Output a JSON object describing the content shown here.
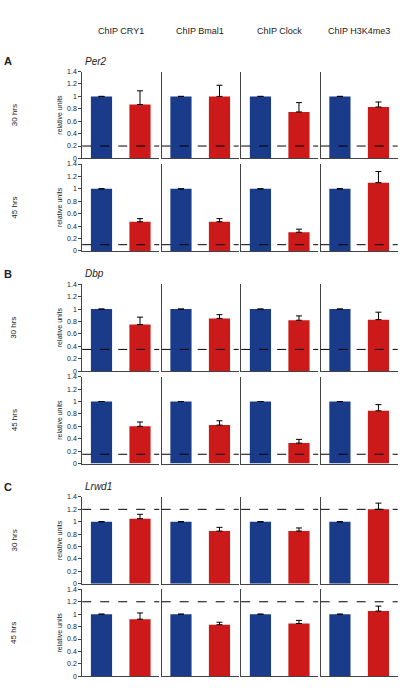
{
  "chart_data": [
    {
      "type": "bar",
      "categories": [
        null,
        null
      ],
      "values": [
        1.0,
        0.87
      ],
      "colors": [
        "#1a3a8a",
        "#cc1a1a"
      ],
      "errors": [
        0.0,
        0.22
      ],
      "reference_line": 0.2,
      "ylim": [
        0,
        1.4
      ],
      "yticks": [
        0,
        0.2,
        0.4,
        0.6,
        0.8,
        1,
        1.2,
        1.4
      ],
      "ylabel": "relative units",
      "tick_labels": "y",
      "grid": false,
      "title": "ChIP CRY1",
      "annotations": [
        "A",
        "Per2",
        "30 hrs"
      ]
    },
    {
      "type": "bar",
      "categories": [
        null,
        null
      ],
      "values": [
        1.0,
        1.0
      ],
      "colors": [
        "#1a3a8a",
        "#cc1a1a"
      ],
      "errors": [
        0.0,
        0.18
      ],
      "reference_line": 0.2,
      "ylim": [
        0,
        1.4
      ],
      "tick_labels": false,
      "grid": false,
      "title": "ChIP Bmal1"
    },
    {
      "type": "bar",
      "categories": [
        null,
        null
      ],
      "values": [
        1.0,
        0.75
      ],
      "colors": [
        "#1a3a8a",
        "#cc1a1a"
      ],
      "errors": [
        0.0,
        0.15
      ],
      "reference_line": 0.2,
      "ylim": [
        0,
        1.4
      ],
      "tick_labels": false,
      "grid": false,
      "title": "ChIP Clock"
    },
    {
      "type": "bar",
      "categories": [
        null,
        null
      ],
      "values": [
        1.0,
        0.83
      ],
      "colors": [
        "#1a3a8a",
        "#cc1a1a"
      ],
      "errors": [
        0.0,
        0.08
      ],
      "reference_line": 0.2,
      "ylim": [
        0,
        1.4
      ],
      "tick_labels": false,
      "grid": false,
      "title": "ChIP H3K4me3"
    },
    {
      "type": "bar",
      "categories": [
        null,
        null
      ],
      "values": [
        1.0,
        0.47
      ],
      "colors": [
        "#1a3a8a",
        "#cc1a1a"
      ],
      "errors": [
        0.0,
        0.05
      ],
      "reference_line": 0.1,
      "ylim": [
        0,
        1.4
      ],
      "yticks": [
        0,
        0.2,
        0.4,
        0.6,
        0.8,
        1,
        1.2,
        1.4
      ],
      "ylabel": "relative units",
      "tick_labels": "y",
      "grid": false,
      "annotations": [
        "45 hrs"
      ]
    },
    {
      "type": "bar",
      "categories": [
        null,
        null
      ],
      "values": [
        1.0,
        0.47
      ],
      "colors": [
        "#1a3a8a",
        "#cc1a1a"
      ],
      "errors": [
        0.0,
        0.05
      ],
      "reference_line": 0.1,
      "ylim": [
        0,
        1.4
      ],
      "tick_labels": false,
      "grid": false
    },
    {
      "type": "bar",
      "categories": [
        null,
        null
      ],
      "values": [
        1.0,
        0.3
      ],
      "colors": [
        "#1a3a8a",
        "#cc1a1a"
      ],
      "errors": [
        0.0,
        0.05
      ],
      "reference_line": 0.1,
      "ylim": [
        0,
        1.4
      ],
      "tick_labels": false,
      "grid": false
    },
    {
      "type": "bar",
      "categories": [
        null,
        null
      ],
      "values": [
        1.0,
        1.1
      ],
      "colors": [
        "#1a3a8a",
        "#cc1a1a"
      ],
      "errors": [
        0.0,
        0.18
      ],
      "reference_line": 0.1,
      "ylim": [
        0,
        1.4
      ],
      "tick_labels": false,
      "grid": false
    },
    {
      "type": "bar",
      "categories": [
        null,
        null
      ],
      "values": [
        1.0,
        0.75
      ],
      "colors": [
        "#1a3a8a",
        "#cc1a1a"
      ],
      "errors": [
        0.0,
        0.12
      ],
      "reference_line": 0.35,
      "ylim": [
        0,
        1.4
      ],
      "yticks": [
        0,
        0.2,
        0.4,
        0.6,
        0.8,
        1,
        1.2,
        1.4
      ],
      "ylabel": "relative units",
      "tick_labels": "y",
      "grid": false,
      "annotations": [
        "B",
        "Dbp",
        "30 hrs"
      ]
    },
    {
      "type": "bar",
      "categories": [
        null,
        null
      ],
      "values": [
        1.0,
        0.85
      ],
      "colors": [
        "#1a3a8a",
        "#cc1a1a"
      ],
      "errors": [
        0.0,
        0.06
      ],
      "reference_line": 0.35,
      "ylim": [
        0,
        1.4
      ],
      "tick_labels": false,
      "grid": false
    },
    {
      "type": "bar",
      "categories": [
        null,
        null
      ],
      "values": [
        1.0,
        0.82
      ],
      "colors": [
        "#1a3a8a",
        "#cc1a1a"
      ],
      "errors": [
        0.0,
        0.07
      ],
      "reference_line": 0.35,
      "ylim": [
        0,
        1.4
      ],
      "tick_labels": false,
      "grid": false
    },
    {
      "type": "bar",
      "categories": [
        null,
        null
      ],
      "values": [
        1.0,
        0.83
      ],
      "colors": [
        "#1a3a8a",
        "#cc1a1a"
      ],
      "errors": [
        0.0,
        0.12
      ],
      "reference_line": 0.35,
      "ylim": [
        0,
        1.4
      ],
      "tick_labels": false,
      "grid": false
    },
    {
      "type": "bar",
      "categories": [
        null,
        null
      ],
      "values": [
        1.0,
        0.6
      ],
      "colors": [
        "#1a3a8a",
        "#cc1a1a"
      ],
      "errors": [
        0.0,
        0.07
      ],
      "reference_line": 0.15,
      "ylim": [
        0,
        1.4
      ],
      "yticks": [
        0,
        0.2,
        0.4,
        0.6,
        0.8,
        1,
        1.2,
        1.4
      ],
      "ylabel": "relative units",
      "tick_labels": "y",
      "grid": false,
      "annotations": [
        "45 hrs"
      ]
    },
    {
      "type": "bar",
      "categories": [
        null,
        null
      ],
      "values": [
        1.0,
        0.62
      ],
      "colors": [
        "#1a3a8a",
        "#cc1a1a"
      ],
      "errors": [
        0.0,
        0.07
      ],
      "reference_line": 0.15,
      "ylim": [
        0,
        1.4
      ],
      "tick_labels": false,
      "grid": false
    },
    {
      "type": "bar",
      "categories": [
        null,
        null
      ],
      "values": [
        1.0,
        0.33
      ],
      "colors": [
        "#1a3a8a",
        "#cc1a1a"
      ],
      "errors": [
        0.0,
        0.06
      ],
      "reference_line": 0.15,
      "ylim": [
        0,
        1.4
      ],
      "tick_labels": false,
      "grid": false
    },
    {
      "type": "bar",
      "categories": [
        null,
        null
      ],
      "values": [
        1.0,
        0.85
      ],
      "colors": [
        "#1a3a8a",
        "#cc1a1a"
      ],
      "errors": [
        0.0,
        0.1
      ],
      "reference_line": 0.15,
      "ylim": [
        0,
        1.4
      ],
      "tick_labels": false,
      "grid": false
    },
    {
      "type": "bar",
      "categories": [
        null,
        null
      ],
      "values": [
        1.0,
        1.05
      ],
      "colors": [
        "#1a3a8a",
        "#cc1a1a"
      ],
      "errors": [
        0.0,
        0.07
      ],
      "reference_line": 1.2,
      "ylim": [
        0,
        1.4
      ],
      "yticks": [
        0,
        0.2,
        0.4,
        0.6,
        0.8,
        1,
        1.2,
        1.4
      ],
      "ylabel": "relative units",
      "tick_labels": "y",
      "grid": false,
      "annotations": [
        "C",
        "Lrwd1",
        "30 hrs"
      ]
    },
    {
      "type": "bar",
      "categories": [
        null,
        null
      ],
      "values": [
        1.0,
        0.85
      ],
      "colors": [
        "#1a3a8a",
        "#cc1a1a"
      ],
      "errors": [
        0.0,
        0.06
      ],
      "reference_line": 1.2,
      "ylim": [
        0,
        1.4
      ],
      "tick_labels": false,
      "grid": false
    },
    {
      "type": "bar",
      "categories": [
        null,
        null
      ],
      "values": [
        1.0,
        0.85
      ],
      "colors": [
        "#1a3a8a",
        "#cc1a1a"
      ],
      "errors": [
        0.0,
        0.05
      ],
      "reference_line": 1.2,
      "ylim": [
        0,
        1.4
      ],
      "tick_labels": false,
      "grid": false
    },
    {
      "type": "bar",
      "categories": [
        null,
        null
      ],
      "values": [
        1.0,
        1.2
      ],
      "colors": [
        "#1a3a8a",
        "#cc1a1a"
      ],
      "errors": [
        0.0,
        0.1
      ],
      "reference_line": 1.2,
      "ylim": [
        0,
        1.4
      ],
      "tick_labels": false,
      "grid": false
    },
    {
      "type": "bar",
      "categories": [
        null,
        null
      ],
      "values": [
        1.0,
        0.92
      ],
      "colors": [
        "#1a3a8a",
        "#cc1a1a"
      ],
      "errors": [
        0.0,
        0.1
      ],
      "reference_line": 1.2,
      "ylim": [
        0,
        1.4
      ],
      "yticks": [
        0,
        0.2,
        0.4,
        0.6,
        0.8,
        1,
        1.2,
        1.4
      ],
      "ylabel": "relative units",
      "tick_labels": "y",
      "grid": false,
      "annotations": [
        "45 hrs"
      ]
    },
    {
      "type": "bar",
      "categories": [
        null,
        null
      ],
      "values": [
        1.0,
        0.83
      ],
      "colors": [
        "#1a3a8a",
        "#cc1a1a"
      ],
      "errors": [
        0.0,
        0.04
      ],
      "reference_line": 1.2,
      "ylim": [
        0,
        1.4
      ],
      "tick_labels": false,
      "grid": false
    },
    {
      "type": "bar",
      "categories": [
        null,
        null
      ],
      "values": [
        1.0,
        0.85
      ],
      "colors": [
        "#1a3a8a",
        "#cc1a1a"
      ],
      "errors": [
        0.0,
        0.05
      ],
      "reference_line": 1.2,
      "ylim": [
        0,
        1.4
      ],
      "tick_labels": false,
      "grid": false
    },
    {
      "type": "bar",
      "categories": [
        null,
        null
      ],
      "values": [
        1.0,
        1.05
      ],
      "colors": [
        "#1a3a8a",
        "#cc1a1a"
      ],
      "errors": [
        0.0,
        0.08
      ],
      "reference_line": 1.2,
      "ylim": [
        0,
        1.4
      ],
      "tick_labels": false,
      "grid": false
    }
  ]
}
